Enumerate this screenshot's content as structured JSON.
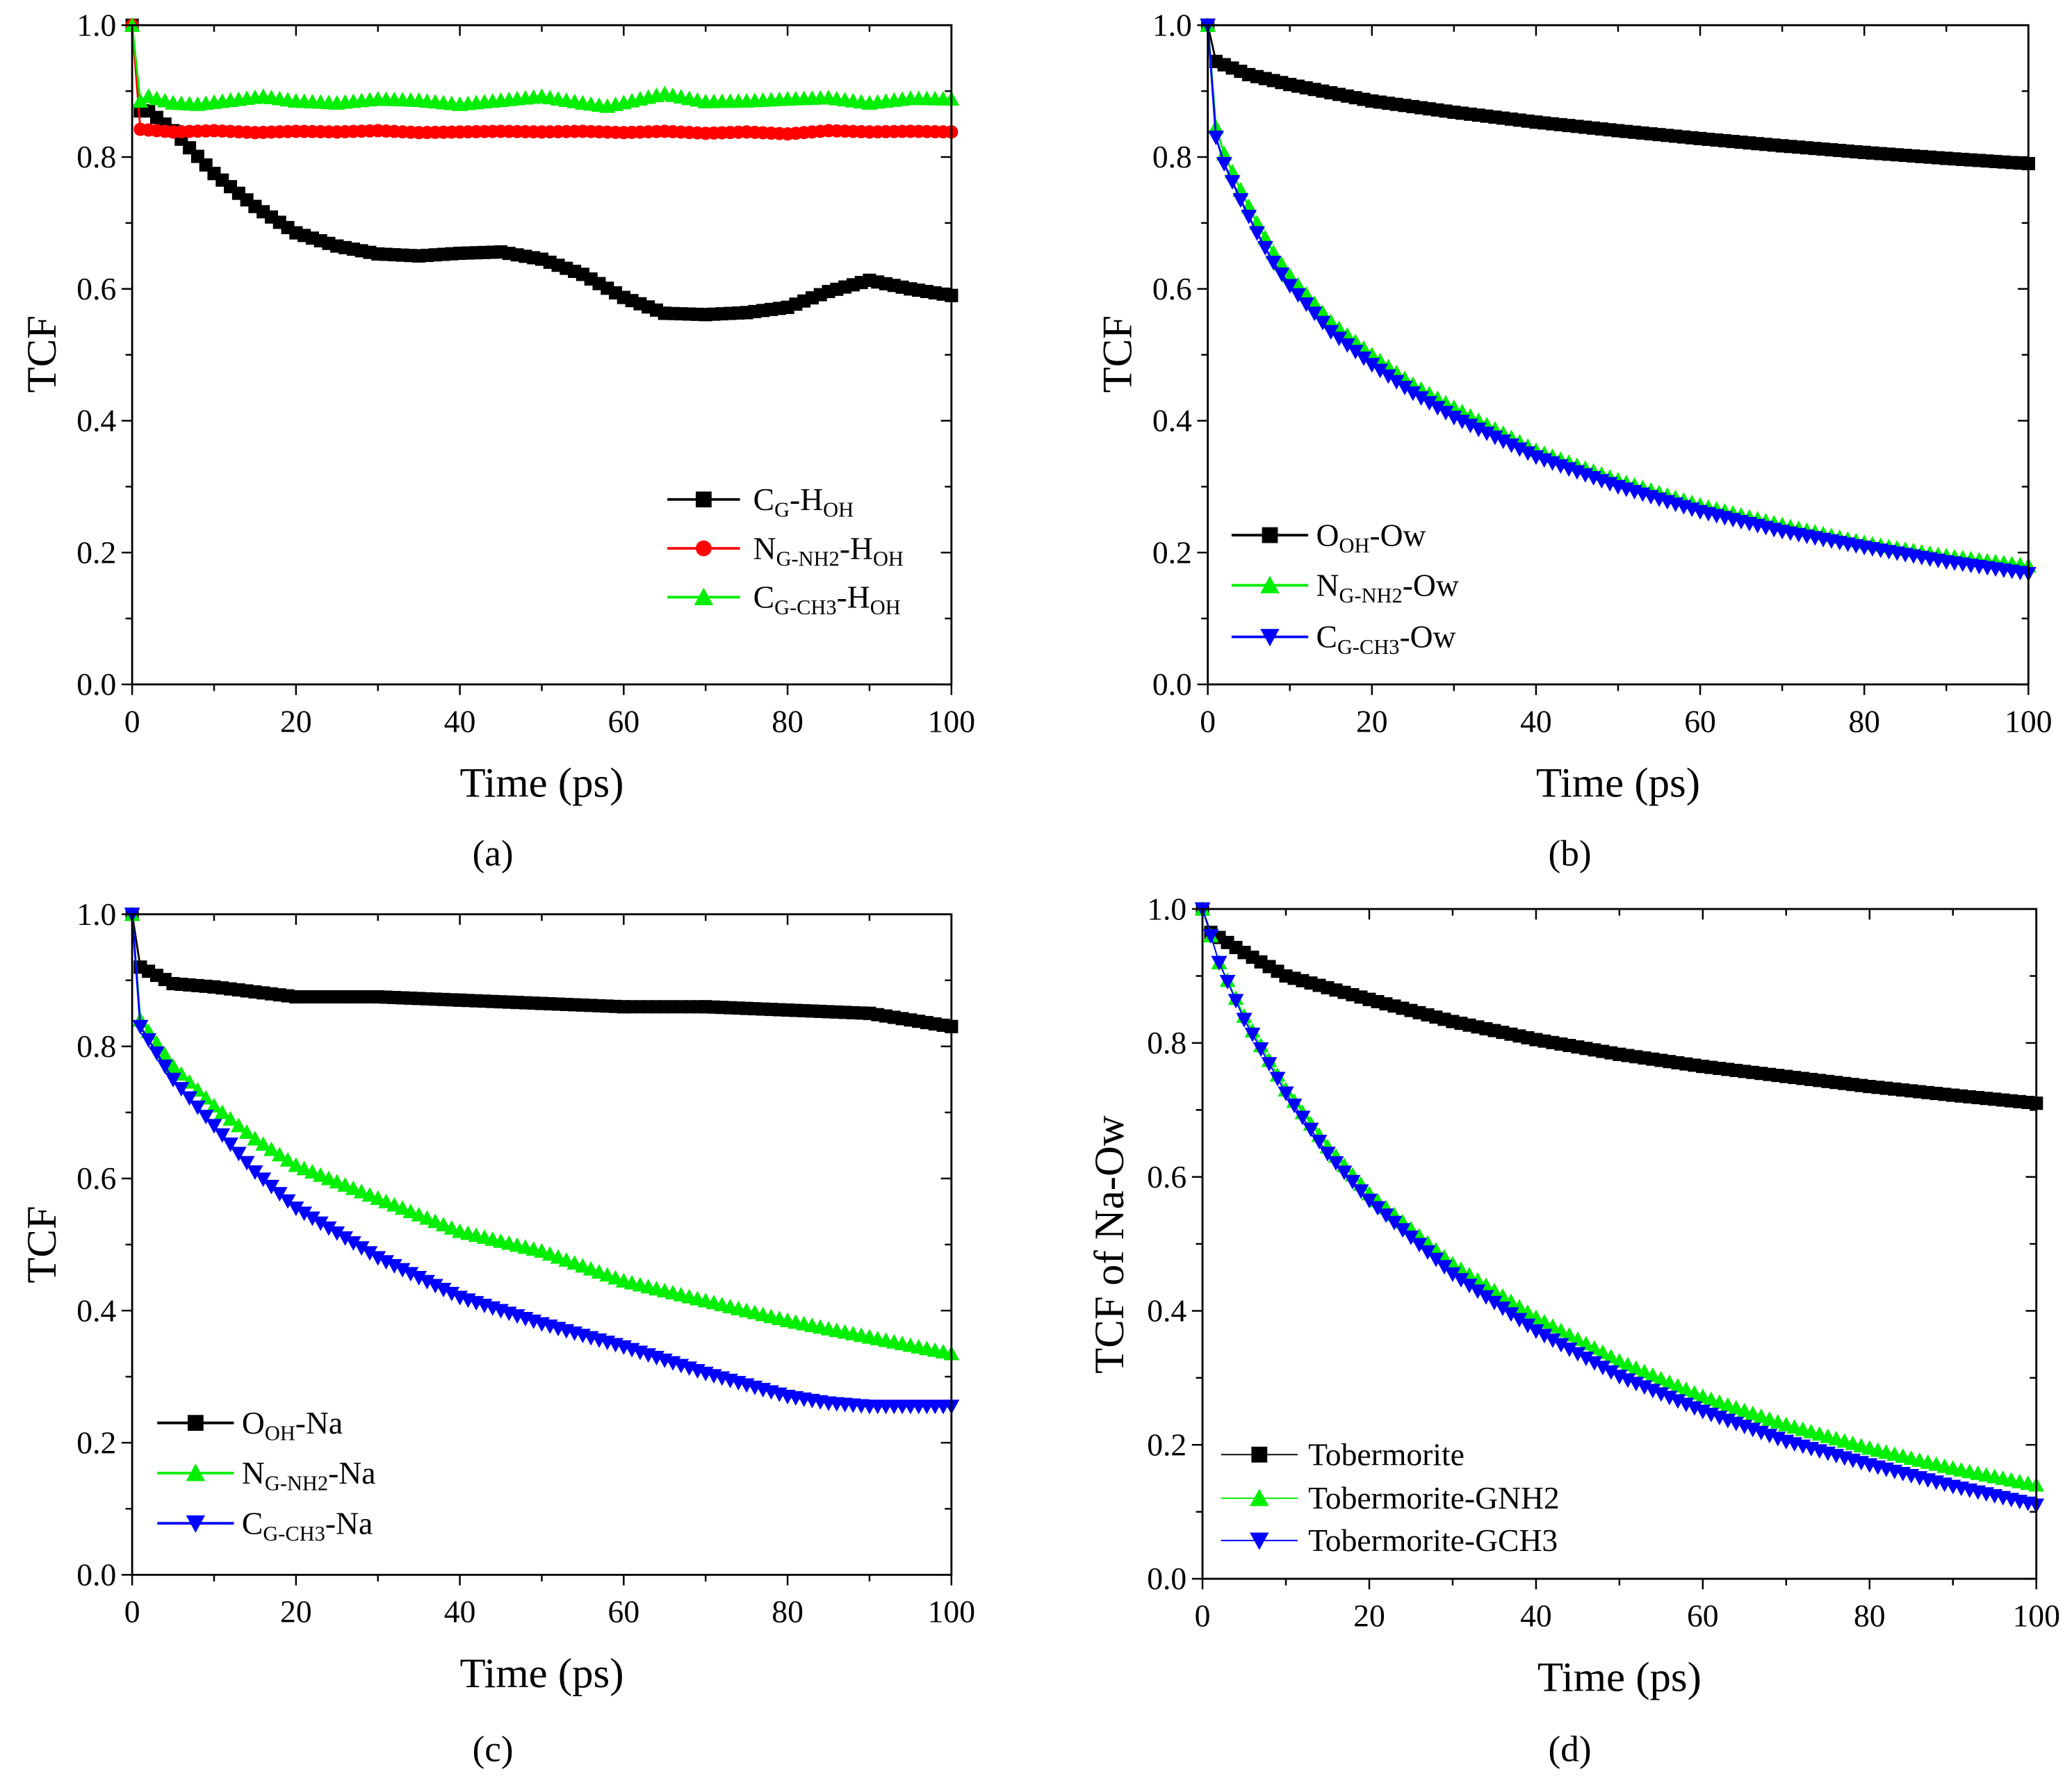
{
  "chart_data": [
    {
      "panel_label": "(a)",
      "type": "line",
      "xlabel": "Time (ps)",
      "ylabel": "TCF",
      "xlim": [
        0,
        100
      ],
      "ylim": [
        0,
        1.0
      ],
      "xticks": [
        "0",
        "20",
        "40",
        "60",
        "80",
        "100"
      ],
      "yticks": [
        "0.0",
        "0.2",
        "0.4",
        "0.6",
        "0.8",
        "1.0"
      ],
      "legend_position": "lower-right",
      "series": [
        {
          "name": "C_G-H_OH",
          "label_parts": [
            {
              "t": "C"
            },
            {
              "s": "G"
            },
            {
              "t": "-H"
            },
            {
              "s": "OH"
            }
          ],
          "color": "#000000",
          "marker": "square",
          "x": [
            0,
            1,
            2,
            5,
            10,
            15,
            20,
            25,
            30,
            35,
            40,
            45,
            50,
            55,
            60,
            65,
            70,
            75,
            80,
            85,
            90,
            95,
            100
          ],
          "y": [
            1.0,
            0.87,
            0.87,
            0.84,
            0.775,
            0.725,
            0.685,
            0.665,
            0.653,
            0.65,
            0.654,
            0.656,
            0.645,
            0.622,
            0.587,
            0.563,
            0.561,
            0.564,
            0.572,
            0.596,
            0.613,
            0.6,
            0.59
          ]
        },
        {
          "name": "N_G-NH2-H_OH",
          "label_parts": [
            {
              "t": "N"
            },
            {
              "s": "G-NH2"
            },
            {
              "t": "-H"
            },
            {
              "s": "OH"
            }
          ],
          "color": "#ff0000",
          "marker": "circle",
          "x": [
            0,
            1,
            2,
            5,
            10,
            15,
            20,
            25,
            30,
            35,
            40,
            45,
            50,
            55,
            60,
            65,
            70,
            75,
            80,
            85,
            90,
            95,
            100
          ],
          "y": [
            1.0,
            0.842,
            0.841,
            0.838,
            0.84,
            0.837,
            0.839,
            0.838,
            0.84,
            0.837,
            0.838,
            0.839,
            0.838,
            0.839,
            0.837,
            0.839,
            0.836,
            0.838,
            0.835,
            0.84,
            0.838,
            0.839,
            0.838
          ]
        },
        {
          "name": "C_G-CH3-H_OH",
          "label_parts": [
            {
              "t": "C"
            },
            {
              "s": "G-CH3"
            },
            {
              "t": "-H"
            },
            {
              "s": "OH"
            }
          ],
          "color": "#00ee00",
          "marker": "triangle-up",
          "x": [
            0,
            1,
            2,
            5,
            8,
            12,
            16,
            20,
            25,
            30,
            35,
            40,
            45,
            50,
            55,
            58,
            62,
            65,
            70,
            75,
            80,
            85,
            90,
            95,
            100
          ],
          "y": [
            1.0,
            0.885,
            0.892,
            0.882,
            0.88,
            0.886,
            0.892,
            0.885,
            0.882,
            0.888,
            0.886,
            0.88,
            0.886,
            0.892,
            0.882,
            0.877,
            0.888,
            0.896,
            0.884,
            0.885,
            0.888,
            0.89,
            0.882,
            0.889,
            0.888
          ]
        }
      ]
    },
    {
      "panel_label": "(b)",
      "type": "line",
      "xlabel": "Time (ps)",
      "ylabel": "TCF",
      "xlim": [
        0,
        100
      ],
      "ylim": [
        0,
        1.0
      ],
      "xticks": [
        "0",
        "20",
        "40",
        "60",
        "80",
        "100"
      ],
      "yticks": [
        "0.0",
        "0.2",
        "0.4",
        "0.6",
        "0.8",
        "1.0"
      ],
      "legend_position": "lower-left",
      "series": [
        {
          "name": "O_OH-Ow",
          "label_parts": [
            {
              "t": "O"
            },
            {
              "s": "OH"
            },
            {
              "t": "-Ow"
            }
          ],
          "color": "#000000",
          "marker": "square",
          "x": [
            0,
            1,
            2,
            5,
            10,
            20,
            30,
            40,
            50,
            60,
            70,
            80,
            90,
            100
          ],
          "y": [
            1.0,
            0.945,
            0.94,
            0.925,
            0.91,
            0.885,
            0.868,
            0.853,
            0.84,
            0.828,
            0.817,
            0.807,
            0.798,
            0.79
          ]
        },
        {
          "name": "N_G-NH2-Ow",
          "label_parts": [
            {
              "t": "N"
            },
            {
              "s": "G-NH2"
            },
            {
              "t": "-Ow"
            }
          ],
          "color": "#00ee00",
          "marker": "triangle-up",
          "x": [
            0,
            1,
            2,
            4,
            6,
            8,
            10,
            15,
            20,
            25,
            30,
            40,
            50,
            60,
            70,
            80,
            90,
            100
          ],
          "y": [
            1.0,
            0.845,
            0.805,
            0.75,
            0.7,
            0.655,
            0.62,
            0.55,
            0.5,
            0.455,
            0.42,
            0.355,
            0.31,
            0.272,
            0.242,
            0.215,
            0.195,
            0.18
          ]
        },
        {
          "name": "C_G-CH3-Ow",
          "label_parts": [
            {
              "t": "C"
            },
            {
              "s": "G-CH3"
            },
            {
              "t": "-Ow"
            }
          ],
          "color": "#0000ff",
          "marker": "triangle-down",
          "x": [
            0,
            1,
            2,
            4,
            6,
            8,
            10,
            15,
            20,
            25,
            30,
            40,
            50,
            60,
            70,
            80,
            90,
            100
          ],
          "y": [
            1.0,
            0.83,
            0.79,
            0.735,
            0.685,
            0.64,
            0.605,
            0.535,
            0.485,
            0.442,
            0.405,
            0.345,
            0.3,
            0.262,
            0.232,
            0.208,
            0.186,
            0.168
          ]
        }
      ]
    },
    {
      "panel_label": "(c)",
      "type": "line",
      "xlabel": "Time (ps)",
      "ylabel": "TCF",
      "xlim": [
        0,
        100
      ],
      "ylim": [
        0,
        1.0
      ],
      "xticks": [
        "0",
        "20",
        "40",
        "60",
        "80",
        "100"
      ],
      "yticks": [
        "0.0",
        "0.2",
        "0.4",
        "0.6",
        "0.8",
        "1.0"
      ],
      "legend_position": "lower-left",
      "series": [
        {
          "name": "O_OH-Na",
          "label_parts": [
            {
              "t": "O"
            },
            {
              "s": "OH"
            },
            {
              "t": "-Na"
            }
          ],
          "color": "#000000",
          "marker": "square",
          "x": [
            0,
            1,
            5,
            10,
            20,
            30,
            40,
            50,
            60,
            70,
            80,
            90,
            100
          ],
          "y": [
            1.0,
            0.92,
            0.895,
            0.89,
            0.875,
            0.875,
            0.87,
            0.865,
            0.86,
            0.86,
            0.855,
            0.85,
            0.83
          ]
        },
        {
          "name": "N_G-NH2-Na",
          "label_parts": [
            {
              "t": "N"
            },
            {
              "s": "G-NH2"
            },
            {
              "t": "-Na"
            }
          ],
          "color": "#00ee00",
          "marker": "triangle-up",
          "x": [
            0,
            1,
            5,
            10,
            15,
            20,
            30,
            40,
            50,
            60,
            70,
            80,
            90,
            100
          ],
          "y": [
            1.0,
            0.84,
            0.77,
            0.71,
            0.66,
            0.62,
            0.57,
            0.52,
            0.49,
            0.445,
            0.415,
            0.385,
            0.36,
            0.335
          ]
        },
        {
          "name": "C_G-CH3-Na",
          "label_parts": [
            {
              "t": "C"
            },
            {
              "s": "G-CH3"
            },
            {
              "t": "-Na"
            }
          ],
          "color": "#0000ff",
          "marker": "triangle-down",
          "x": [
            0,
            1,
            5,
            10,
            15,
            20,
            30,
            40,
            50,
            60,
            70,
            80,
            85,
            90,
            100
          ],
          "y": [
            1.0,
            0.83,
            0.75,
            0.68,
            0.61,
            0.555,
            0.48,
            0.42,
            0.38,
            0.345,
            0.305,
            0.27,
            0.26,
            0.255,
            0.255
          ]
        }
      ]
    },
    {
      "panel_label": "(d)",
      "type": "line",
      "xlabel": "Time (ps)",
      "ylabel": "TCF of Na-Ow",
      "xlim": [
        0,
        100
      ],
      "ylim": [
        0,
        1.0
      ],
      "xticks": [
        "0",
        "20",
        "40",
        "60",
        "80",
        "100"
      ],
      "yticks": [
        "0.0",
        "0.2",
        "0.4",
        "0.6",
        "0.8",
        "1.0"
      ],
      "legend_position": "lower-left",
      "series": [
        {
          "name": "Tobermorite",
          "label_parts": [
            {
              "t": "Tobermorite"
            }
          ],
          "color": "#000000",
          "marker": "square",
          "x": [
            0,
            1,
            5,
            10,
            20,
            30,
            40,
            50,
            60,
            70,
            80,
            90,
            100
          ],
          "y": [
            1.0,
            0.965,
            0.935,
            0.9,
            0.865,
            0.832,
            0.805,
            0.783,
            0.765,
            0.75,
            0.735,
            0.722,
            0.71
          ]
        },
        {
          "name": "Tobermorite-GNH2",
          "label_parts": [
            {
              "t": "Tobermorite-GNH2"
            }
          ],
          "color": "#00ee00",
          "marker": "triangle-up",
          "x": [
            0,
            2,
            5,
            10,
            15,
            20,
            30,
            40,
            50,
            60,
            70,
            80,
            90,
            100
          ],
          "y": [
            1.0,
            0.92,
            0.84,
            0.73,
            0.645,
            0.575,
            0.47,
            0.39,
            0.325,
            0.272,
            0.23,
            0.195,
            0.165,
            0.14
          ]
        },
        {
          "name": "Tobermorite-GCH3",
          "label_parts": [
            {
              "t": "Tobermorite-GCH3"
            }
          ],
          "color": "#0000ff",
          "marker": "triangle-down",
          "x": [
            0,
            2,
            5,
            10,
            15,
            20,
            30,
            40,
            50,
            60,
            70,
            80,
            90,
            100
          ],
          "y": [
            1.0,
            0.92,
            0.835,
            0.725,
            0.635,
            0.565,
            0.455,
            0.37,
            0.302,
            0.25,
            0.205,
            0.17,
            0.138,
            0.11
          ]
        }
      ]
    }
  ]
}
